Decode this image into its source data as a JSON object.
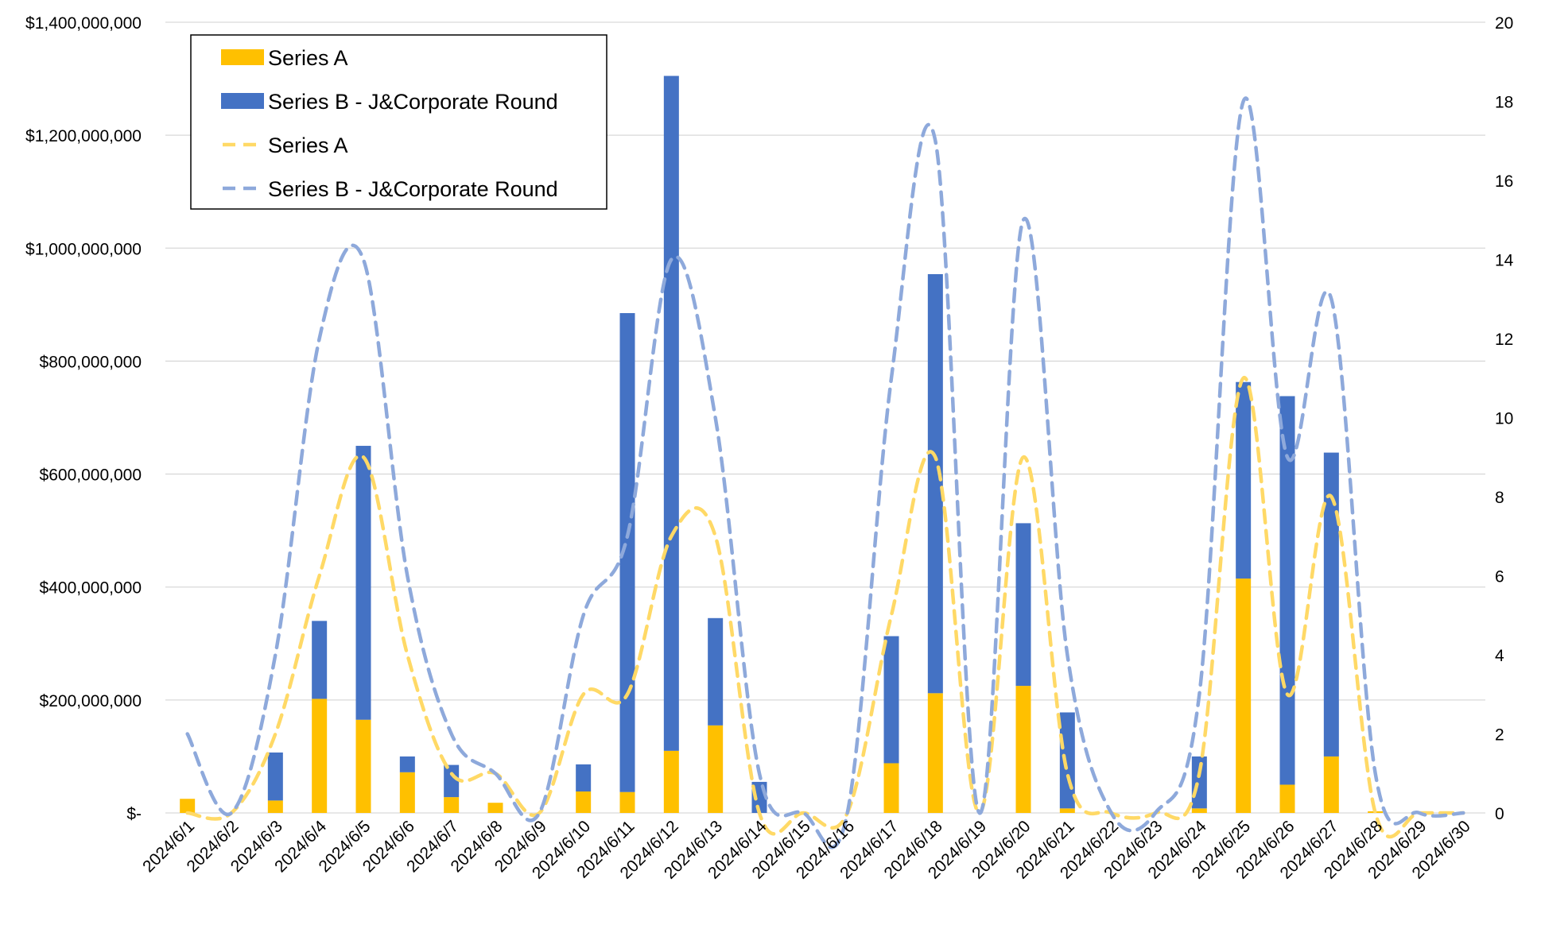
{
  "chart_data": {
    "type": "bar",
    "stacked": true,
    "categories": [
      "2024/6/1",
      "2024/6/2",
      "2024/6/3",
      "2024/6/4",
      "2024/6/5",
      "2024/6/6",
      "2024/6/7",
      "2024/6/8",
      "2024/6/9",
      "2024/6/10",
      "2024/6/11",
      "2024/6/12",
      "2024/6/13",
      "2024/6/14",
      "2024/6/15",
      "2024/6/16",
      "2024/6/17",
      "2024/6/18",
      "2024/6/19",
      "2024/6/20",
      "2024/6/21",
      "2024/6/22",
      "2024/6/23",
      "2024/6/24",
      "2024/6/25",
      "2024/6/26",
      "2024/6/27",
      "2024/6/28",
      "2024/6/29",
      "2024/6/30"
    ],
    "y_left": {
      "ylim": [
        0,
        1400000000
      ],
      "ticks": [
        0,
        200000000,
        400000000,
        600000000,
        800000000,
        1000000000,
        1200000000,
        1400000000
      ],
      "tick_labels": [
        "$-",
        "$200,000,000",
        "$400,000,000",
        "$600,000,000",
        "$800,000,000",
        "$1,000,000,000",
        "$1,200,000,000",
        "$1,400,000,000"
      ]
    },
    "y_right": {
      "ylim": [
        0,
        20
      ],
      "ticks": [
        0,
        2,
        4,
        6,
        8,
        10,
        12,
        14,
        16,
        18,
        20
      ],
      "tick_labels": [
        "0",
        "2",
        "4",
        "6",
        "8",
        "10",
        "12",
        "14",
        "16",
        "18",
        "20"
      ]
    },
    "grid": "horizontal",
    "legend_position": "top-left",
    "series": [
      {
        "name": "Series A",
        "kind": "bar",
        "axis": "left",
        "color": "#FFC000",
        "values": [
          25000000,
          0,
          22000000,
          202000000,
          165000000,
          72000000,
          28000000,
          18000000,
          0,
          38000000,
          37000000,
          110000000,
          155000000,
          0,
          0,
          0,
          88000000,
          212000000,
          0,
          225000000,
          8000000,
          0,
          0,
          8000000,
          415000000,
          50000000,
          100000000,
          3000000,
          0,
          0
        ]
      },
      {
        "name": "Series B - J&Corporate Round",
        "kind": "bar",
        "axis": "left",
        "color": "#4472C4",
        "values": [
          0,
          0,
          85000000,
          138000000,
          485000000,
          28000000,
          57000000,
          0,
          0,
          48000000,
          848000000,
          1195000000,
          190000000,
          55000000,
          0,
          0,
          225000000,
          742000000,
          0,
          288000000,
          170000000,
          0,
          0,
          92000000,
          348000000,
          688000000,
          538000000,
          0,
          0,
          0
        ]
      },
      {
        "name": "Series A",
        "kind": "line",
        "style": "dashed",
        "axis": "right",
        "color": "#FFD966",
        "values": [
          0,
          0,
          2,
          6,
          9,
          4,
          1,
          1,
          0,
          3,
          3,
          7,
          7,
          0,
          0,
          0,
          5,
          9,
          0,
          9,
          1,
          0,
          0,
          1,
          11,
          3,
          8,
          0,
          0,
          0
        ]
      },
      {
        "name": "Series B - J&Corporate Round",
        "kind": "line",
        "style": "dashed",
        "axis": "right",
        "color": "#8EA9DB",
        "values": [
          2,
          0,
          4,
          12,
          14,
          6,
          2,
          1,
          0,
          5,
          7,
          14,
          10,
          1,
          0,
          0,
          11,
          17,
          0,
          15,
          4,
          0,
          0,
          3,
          18,
          9,
          13,
          1,
          0,
          0
        ]
      }
    ],
    "legend": {
      "entries": [
        {
          "label": "Series A",
          "marker": "bar",
          "color": "#FFC000"
        },
        {
          "label": "Series B - J&Corporate Round",
          "marker": "bar",
          "color": "#4472C4"
        },
        {
          "label": "Series A",
          "marker": "dash",
          "color": "#FFD966"
        },
        {
          "label": "Series B - J&Corporate Round",
          "marker": "dash",
          "color": "#8EA9DB"
        }
      ]
    }
  }
}
